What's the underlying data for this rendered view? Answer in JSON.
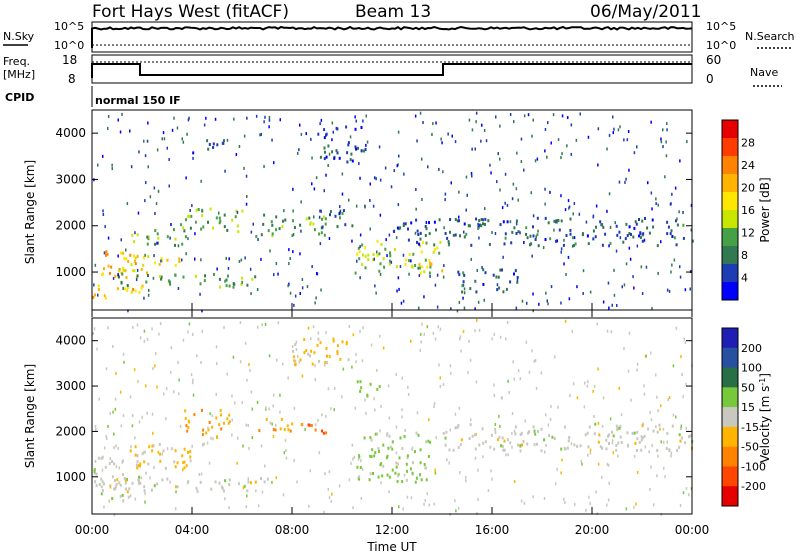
{
  "header": {
    "title": "Fort Hays West (fitACF)",
    "beam": "Beam 13",
    "date": "06/May/2011"
  },
  "top_panel_labels": {
    "left_top": "N.Sky",
    "left_bottom_a": "10^5",
    "left_bottom_b": "10^0",
    "right_top": "N.Search",
    "right_a": "10^5",
    "right_b": "10^0"
  },
  "freq_panel_labels": {
    "left": "Freq.",
    "left_unit": "[MHz]",
    "left_ticks": [
      "18",
      "8"
    ],
    "right": "Nave",
    "right_ticks": [
      "60",
      "0"
    ]
  },
  "cpid": {
    "label": "CPID",
    "value": "normal 150 IF"
  },
  "x_axis": {
    "label": "Time UT",
    "ticks": [
      "00:00",
      "04:00",
      "08:00",
      "12:00",
      "16:00",
      "20:00",
      "00:00"
    ]
  },
  "power_colorbar": {
    "label": "Power [dB]",
    "ticks": [
      "28",
      "24",
      "20",
      "16",
      "12",
      "8",
      "4"
    ],
    "colors": [
      "#e60000",
      "#ff3c00",
      "#ff8200",
      "#ffb400",
      "#ffe600",
      "#c8e600",
      "#46a046",
      "#327850",
      "#1e3cb4",
      "#0000ff"
    ]
  },
  "velocity_colorbar": {
    "label": "Velocity [m s",
    "label_sup": "-1",
    "label_close": "]",
    "ticks": [
      "200",
      "100",
      "50",
      "15",
      "-15",
      "-50",
      "-100",
      "-200"
    ],
    "colors": [
      "#1e1eb4",
      "#2850a0",
      "#286e46",
      "#78c83c",
      "#c8c8c0",
      "#ffb400",
      "#ff8200",
      "#ff4600",
      "#e60000"
    ]
  },
  "chart_data": [
    {
      "type": "heatmap",
      "title": "",
      "xlabel": "Time UT",
      "ylabel": "Slant Range [km]",
      "yticks": [
        1000,
        2000,
        3000,
        4000
      ],
      "ylim": [
        180,
        4500
      ],
      "xlim_hours": [
        0,
        24
      ],
      "quantity": "Power [dB]",
      "colorbar_range": [
        0,
        30
      ],
      "regions": [
        {
          "t": [
            0.0,
            1.8
          ],
          "r": [
            900,
            1500
          ],
          "v": 20
        },
        {
          "t": [
            0.0,
            2.0
          ],
          "r": [
            450,
            800
          ],
          "v": 18
        },
        {
          "t": [
            1.0,
            3.5
          ],
          "r": [
            1000,
            1400
          ],
          "v": 17
        },
        {
          "t": [
            1.5,
            3.8
          ],
          "r": [
            1600,
            2000
          ],
          "v": 10
        },
        {
          "t": [
            1.0,
            6.5
          ],
          "r": [
            700,
            1000
          ],
          "v": 9
        },
        {
          "t": [
            3.5,
            6.0
          ],
          "r": [
            1900,
            2400
          ],
          "v": 10
        },
        {
          "t": [
            6.5,
            9.5
          ],
          "r": [
            1800,
            2300
          ],
          "v": 9
        },
        {
          "t": [
            9.0,
            10.5
          ],
          "r": [
            2000,
            2400
          ],
          "v": 8
        },
        {
          "t": [
            10.5,
            14.0
          ],
          "r": [
            1000,
            1700
          ],
          "v": 13
        },
        {
          "t": [
            13.0,
            14.0
          ],
          "r": [
            1000,
            1300
          ],
          "v": 18
        },
        {
          "t": [
            12.0,
            24.0
          ],
          "r": [
            1600,
            2200
          ],
          "v": 5
        },
        {
          "t": [
            4.0,
            5.5
          ],
          "r": [
            3600,
            3900
          ],
          "v": 4
        },
        {
          "t": [
            9.0,
            11.0
          ],
          "r": [
            3400,
            4200
          ],
          "v": 4
        },
        {
          "t": [
            14.5,
            17.0
          ],
          "r": [
            600,
            1100
          ],
          "v": 5
        }
      ]
    },
    {
      "type": "heatmap",
      "title": "",
      "xlabel": "Time UT",
      "ylabel": "Slant Range [km]",
      "yticks": [
        1000,
        2000,
        3000,
        4000
      ],
      "ylim": [
        180,
        4500
      ],
      "xlim_hours": [
        0,
        24
      ],
      "quantity": "Velocity [m s-1]",
      "colorbar_range": [
        -200,
        200
      ],
      "regions": [
        {
          "t": [
            0.0,
            2.0
          ],
          "r": [
            500,
            1500
          ],
          "v": 0
        },
        {
          "t": [
            1.5,
            4.0
          ],
          "r": [
            1200,
            1800
          ],
          "v": -40
        },
        {
          "t": [
            3.5,
            5.5
          ],
          "r": [
            1900,
            2500
          ],
          "v": -60
        },
        {
          "t": [
            6.5,
            8.5
          ],
          "r": [
            2000,
            2300
          ],
          "v": -80
        },
        {
          "t": [
            8.5,
            9.5
          ],
          "r": [
            1900,
            2200
          ],
          "v": -120
        },
        {
          "t": [
            10.5,
            13.5
          ],
          "r": [
            900,
            2000
          ],
          "v": 40
        },
        {
          "t": [
            14.0,
            24.0
          ],
          "r": [
            1600,
            2200
          ],
          "v": 0
        },
        {
          "t": [
            1.0,
            7.0
          ],
          "r": [
            700,
            1000
          ],
          "v": 0
        },
        {
          "t": [
            8.0,
            10.5
          ],
          "r": [
            3500,
            4100
          ],
          "v": -40
        },
        {
          "t": [
            10.5,
            11.5
          ],
          "r": [
            2800,
            3200
          ],
          "v": 60
        }
      ]
    }
  ]
}
